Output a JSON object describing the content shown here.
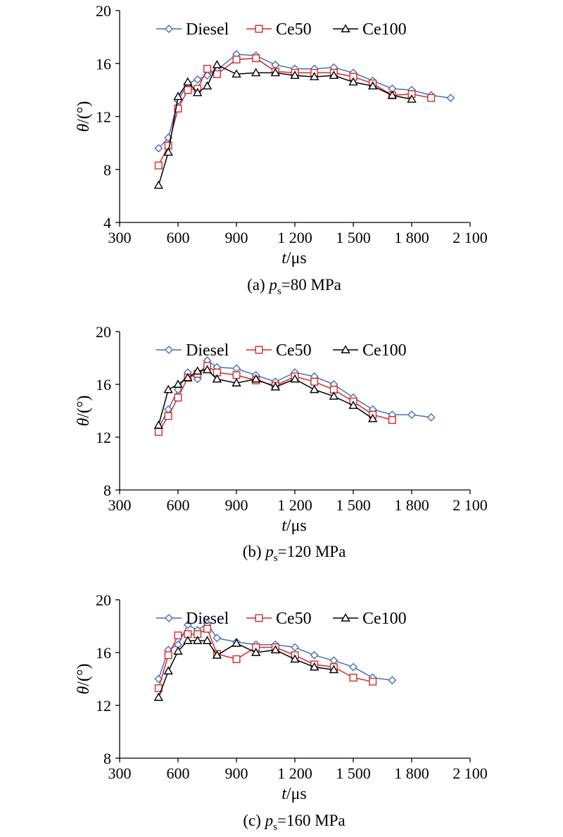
{
  "chart_data": [
    {
      "type": "line",
      "caption": {
        "prefix": "(a) ",
        "var": "p",
        "sub": "s",
        "rest": "=80 MPa"
      },
      "xlabel": {
        "var": "t",
        "unit": "/μs"
      },
      "ylabel": {
        "var": "θ",
        "unit": "/(°)"
      },
      "xlim": [
        300,
        2100
      ],
      "ylim": [
        4,
        20
      ],
      "xticks": [
        300,
        600,
        900,
        1200,
        1500,
        1800,
        2100
      ],
      "xtick_labels": [
        "300",
        "600",
        "900",
        "1 200",
        "1 500",
        "1 800",
        "2 100"
      ],
      "yticks": [
        4,
        8,
        12,
        16,
        20
      ],
      "ytick_labels": [
        "4",
        "8",
        "12",
        "16",
        "20"
      ],
      "grid": false,
      "legend_position": "top",
      "series": [
        {
          "name": "Diesel",
          "color": "#4a6fb5",
          "marker": "diamond",
          "x": [
            500,
            550,
            600,
            650,
            700,
            750,
            800,
            900,
            1000,
            1100,
            1200,
            1300,
            1400,
            1500,
            1600,
            1700,
            1800,
            1900,
            2000
          ],
          "y": [
            9.6,
            10.4,
            13.2,
            14.5,
            14.8,
            15.1,
            15.5,
            16.7,
            16.6,
            15.9,
            15.6,
            15.6,
            15.7,
            15.3,
            14.7,
            14.1,
            14.0,
            13.6,
            13.4
          ]
        },
        {
          "name": "Ce50",
          "color": "#d42a2a",
          "marker": "square",
          "x": [
            500,
            550,
            600,
            650,
            700,
            750,
            800,
            900,
            1000,
            1100,
            1200,
            1300,
            1400,
            1500,
            1600,
            1700,
            1800,
            1900
          ],
          "y": [
            8.3,
            9.8,
            12.6,
            14.0,
            14.1,
            15.6,
            15.2,
            16.3,
            16.4,
            15.4,
            15.3,
            15.3,
            15.3,
            15.0,
            14.5,
            13.6,
            13.7,
            13.4
          ]
        },
        {
          "name": "Ce100",
          "color": "#000000",
          "marker": "triangle",
          "x": [
            500,
            550,
            600,
            650,
            700,
            750,
            800,
            900,
            1000,
            1100,
            1200,
            1300,
            1400,
            1500,
            1600,
            1700,
            1800
          ],
          "y": [
            6.8,
            9.3,
            13.5,
            14.6,
            13.8,
            14.3,
            15.9,
            15.2,
            15.3,
            15.3,
            15.1,
            15.0,
            15.1,
            14.6,
            14.3,
            13.6,
            13.3
          ]
        }
      ]
    },
    {
      "type": "line",
      "caption": {
        "prefix": "(b) ",
        "var": "p",
        "sub": "s",
        "rest": "=120 MPa"
      },
      "xlabel": {
        "var": "t",
        "unit": "/μs"
      },
      "ylabel": {
        "var": "θ",
        "unit": "/(°)"
      },
      "xlim": [
        300,
        2100
      ],
      "ylim": [
        8,
        20
      ],
      "xticks": [
        300,
        600,
        900,
        1200,
        1500,
        1800,
        2100
      ],
      "xtick_labels": [
        "300",
        "600",
        "900",
        "1 200",
        "1 500",
        "1 800",
        "2 100"
      ],
      "yticks": [
        8,
        12,
        16,
        20
      ],
      "ytick_labels": [
        "8",
        "12",
        "16",
        "20"
      ],
      "grid": false,
      "legend_position": "top",
      "series": [
        {
          "name": "Diesel",
          "color": "#4a6fb5",
          "marker": "diamond",
          "x": [
            500,
            550,
            600,
            650,
            700,
            750,
            800,
            900,
            1000,
            1100,
            1200,
            1300,
            1400,
            1500,
            1600,
            1700,
            1800,
            1900
          ],
          "y": [
            12.7,
            14.1,
            15.6,
            16.9,
            16.4,
            17.8,
            17.3,
            17.2,
            16.7,
            16.2,
            16.9,
            16.6,
            16.0,
            15.0,
            14.1,
            13.7,
            13.7,
            13.5
          ]
        },
        {
          "name": "Ce50",
          "color": "#d42a2a",
          "marker": "square",
          "x": [
            500,
            550,
            600,
            650,
            700,
            750,
            800,
            900,
            1000,
            1100,
            1200,
            1300,
            1400,
            1500,
            1600,
            1700
          ],
          "y": [
            12.4,
            13.6,
            15.0,
            16.5,
            16.8,
            17.4,
            16.9,
            16.7,
            16.3,
            15.9,
            16.6,
            16.2,
            15.6,
            14.7,
            13.7,
            13.3
          ]
        },
        {
          "name": "Ce100",
          "color": "#000000",
          "marker": "triangle",
          "x": [
            500,
            550,
            600,
            650,
            700,
            750,
            800,
            900,
            1000,
            1100,
            1200,
            1300,
            1400,
            1500,
            1600
          ],
          "y": [
            12.9,
            15.6,
            16.0,
            16.5,
            17.0,
            17.1,
            16.4,
            16.1,
            16.4,
            15.8,
            16.4,
            15.6,
            15.1,
            14.4,
            13.4
          ]
        }
      ]
    },
    {
      "type": "line",
      "caption": {
        "prefix": "(c) ",
        "var": "p",
        "sub": "s",
        "rest": "=160 MPa"
      },
      "xlabel": {
        "var": "t",
        "unit": "/μs"
      },
      "ylabel": {
        "var": "θ",
        "unit": "/(°)"
      },
      "xlim": [
        300,
        2100
      ],
      "ylim": [
        8,
        20
      ],
      "xticks": [
        300,
        600,
        900,
        1200,
        1500,
        1800,
        2100
      ],
      "xtick_labels": [
        "300",
        "600",
        "900",
        "1 200",
        "1 500",
        "1 800",
        "2 100"
      ],
      "yticks": [
        8,
        12,
        16,
        20
      ],
      "ytick_labels": [
        "8",
        "12",
        "16",
        "20"
      ],
      "grid": false,
      "legend_position": "top",
      "series": [
        {
          "name": "Diesel",
          "color": "#4a6fb5",
          "marker": "diamond",
          "x": [
            500,
            550,
            600,
            650,
            700,
            750,
            800,
            900,
            1000,
            1100,
            1200,
            1300,
            1400,
            1500,
            1600,
            1700
          ],
          "y": [
            14.0,
            16.2,
            16.6,
            18.1,
            17.7,
            18.2,
            17.1,
            16.8,
            16.6,
            16.6,
            16.4,
            15.8,
            15.4,
            14.9,
            14.1,
            13.9
          ]
        },
        {
          "name": "Ce50",
          "color": "#d42a2a",
          "marker": "square",
          "x": [
            500,
            550,
            600,
            650,
            700,
            750,
            800,
            900,
            1000,
            1100,
            1200,
            1300,
            1400,
            1500,
            1600
          ],
          "y": [
            13.3,
            15.8,
            17.3,
            17.4,
            17.4,
            17.8,
            15.9,
            15.5,
            16.4,
            16.4,
            15.8,
            15.1,
            14.9,
            14.1,
            13.8
          ]
        },
        {
          "name": "Ce100",
          "color": "#000000",
          "marker": "triangle",
          "x": [
            500,
            550,
            600,
            650,
            700,
            750,
            800,
            900,
            1000,
            1100,
            1200,
            1300,
            1400
          ],
          "y": [
            12.6,
            14.6,
            16.1,
            16.9,
            16.9,
            16.9,
            15.8,
            16.7,
            16.0,
            16.2,
            15.5,
            14.9,
            14.7
          ]
        }
      ]
    }
  ]
}
